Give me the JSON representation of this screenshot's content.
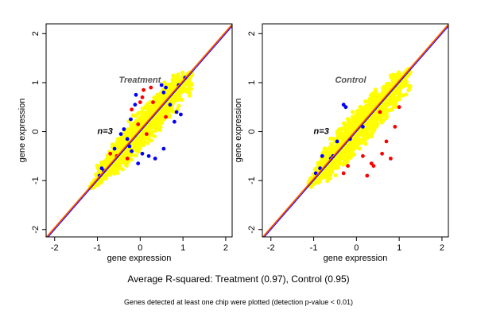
{
  "caption": "Average R-squared: Treatment (0.97), Control (0.95)",
  "subcaption": "Genes detected at least one chip were plotted (detection p-value < 0.01)",
  "colors": {
    "background": "#ffffff",
    "frame": "#000000",
    "yellow": "#ffff00",
    "blue": "#0000ff",
    "red": "#ff0000",
    "orange": "#ff8c00",
    "label_gray": "#555555"
  },
  "chart_data": [
    {
      "type": "scatter",
      "title": "",
      "panel_label": "Treatment",
      "n_label": "n=3",
      "xlabel": "gene expression",
      "ylabel": "gene expression",
      "xlim": [
        -2.2,
        2.15
      ],
      "ylim": [
        -2.15,
        2.2
      ],
      "xticks": [
        -2,
        -1,
        0,
        1,
        2
      ],
      "yticks": [
        -2,
        -1,
        0,
        1,
        2
      ],
      "grid": false,
      "cloud": {
        "x_range": [
          -1.15,
          1.2
        ],
        "y_range": [
          -1.1,
          1.2
        ],
        "spread": 0.35
      },
      "reference_lines": [
        {
          "color": "#0000ff",
          "from": [
            -2.2,
            -2.2
          ],
          "to": [
            2.15,
            2.15
          ]
        },
        {
          "color": "#ff0000",
          "from": [
            -2.2,
            -2.17
          ],
          "to": [
            2.15,
            2.18
          ]
        },
        {
          "color": "#ff8c00",
          "from": [
            -2.2,
            -2.15
          ],
          "to": [
            2.15,
            2.2
          ]
        }
      ],
      "series": [
        {
          "color": "#0000ff",
          "points": [
            [
              -0.12,
              0.55
            ],
            [
              -0.22,
              0.25
            ],
            [
              -0.38,
              0.05
            ],
            [
              -0.45,
              -0.05
            ],
            [
              -0.25,
              -0.3
            ],
            [
              -0.2,
              -0.4
            ],
            [
              0.9,
              0.95
            ],
            [
              0.55,
              0.8
            ],
            [
              0.6,
              0.9
            ],
            [
              0.5,
              0.95
            ],
            [
              -0.1,
              0.75
            ],
            [
              0.95,
              0.35
            ],
            [
              0.85,
              0.4
            ],
            [
              0.8,
              0.2
            ],
            [
              0.55,
              -0.35
            ],
            [
              -0.85,
              -0.8
            ],
            [
              -0.9,
              -0.75
            ],
            [
              -0.95,
              -0.9
            ],
            [
              -0.6,
              -0.35
            ],
            [
              -0.3,
              -0.15
            ],
            [
              0.05,
              -0.45
            ],
            [
              0.2,
              -0.5
            ],
            [
              0.35,
              -0.55
            ],
            [
              0.7,
              0.55
            ],
            [
              -0.05,
              -0.65
            ],
            [
              1.05,
              1.1
            ]
          ]
        },
        {
          "color": "#ff0000",
          "points": [
            [
              0.05,
              0.7
            ],
            [
              0.0,
              0.6
            ],
            [
              0.08,
              0.85
            ],
            [
              -0.05,
              0.15
            ],
            [
              0.25,
              0.9
            ],
            [
              -0.3,
              -0.55
            ],
            [
              -0.55,
              -0.5
            ],
            [
              -0.7,
              -0.45
            ],
            [
              0.15,
              -0.05
            ],
            [
              0.6,
              0.3
            ],
            [
              0.3,
              0.6
            ],
            [
              -0.2,
              0.45
            ]
          ]
        }
      ]
    },
    {
      "type": "scatter",
      "title": "",
      "panel_label": "Control",
      "n_label": "n=3",
      "xlabel": "gene expression",
      "ylabel": "gene expression",
      "xlim": [
        -2.2,
        2.15
      ],
      "ylim": [
        -2.15,
        2.2
      ],
      "xticks": [
        -2,
        -1,
        0,
        1,
        2
      ],
      "yticks": [
        -2,
        -1,
        0,
        1,
        2
      ],
      "grid": false,
      "cloud": {
        "x_range": [
          -1.1,
          1.25
        ],
        "y_range": [
          -1.1,
          1.2
        ],
        "spread": 0.4
      },
      "reference_lines": [
        {
          "color": "#0000ff",
          "from": [
            -2.2,
            -2.2
          ],
          "to": [
            2.15,
            2.15
          ]
        },
        {
          "color": "#ff0000",
          "from": [
            -2.2,
            -2.17
          ],
          "to": [
            2.15,
            2.18
          ]
        },
        {
          "color": "#ff8c00",
          "from": [
            -2.2,
            -2.15
          ],
          "to": [
            2.15,
            2.2
          ]
        }
      ],
      "series": [
        {
          "color": "#0000ff",
          "points": [
            [
              -0.3,
              0.55
            ],
            [
              -0.25,
              0.5
            ],
            [
              -0.85,
              -0.75
            ],
            [
              -0.8,
              -0.5
            ],
            [
              -0.55,
              -0.5
            ],
            [
              -0.6,
              -0.55
            ],
            [
              -0.15,
              -0.15
            ],
            [
              -0.45,
              -0.2
            ],
            [
              0.15,
              0.1
            ],
            [
              -0.95,
              -0.85
            ]
          ]
        },
        {
          "color": "#ff0000",
          "points": [
            [
              0.35,
              -0.65
            ],
            [
              0.6,
              -0.45
            ],
            [
              0.8,
              -0.55
            ],
            [
              0.9,
              0.1
            ],
            [
              -0.3,
              -0.85
            ],
            [
              -0.2,
              -0.7
            ],
            [
              0.25,
              -0.9
            ],
            [
              0.4,
              -0.7
            ],
            [
              0.55,
              0.4
            ],
            [
              0.7,
              -0.2
            ],
            [
              1.0,
              0.5
            ],
            [
              0.15,
              -0.5
            ]
          ]
        }
      ]
    }
  ]
}
